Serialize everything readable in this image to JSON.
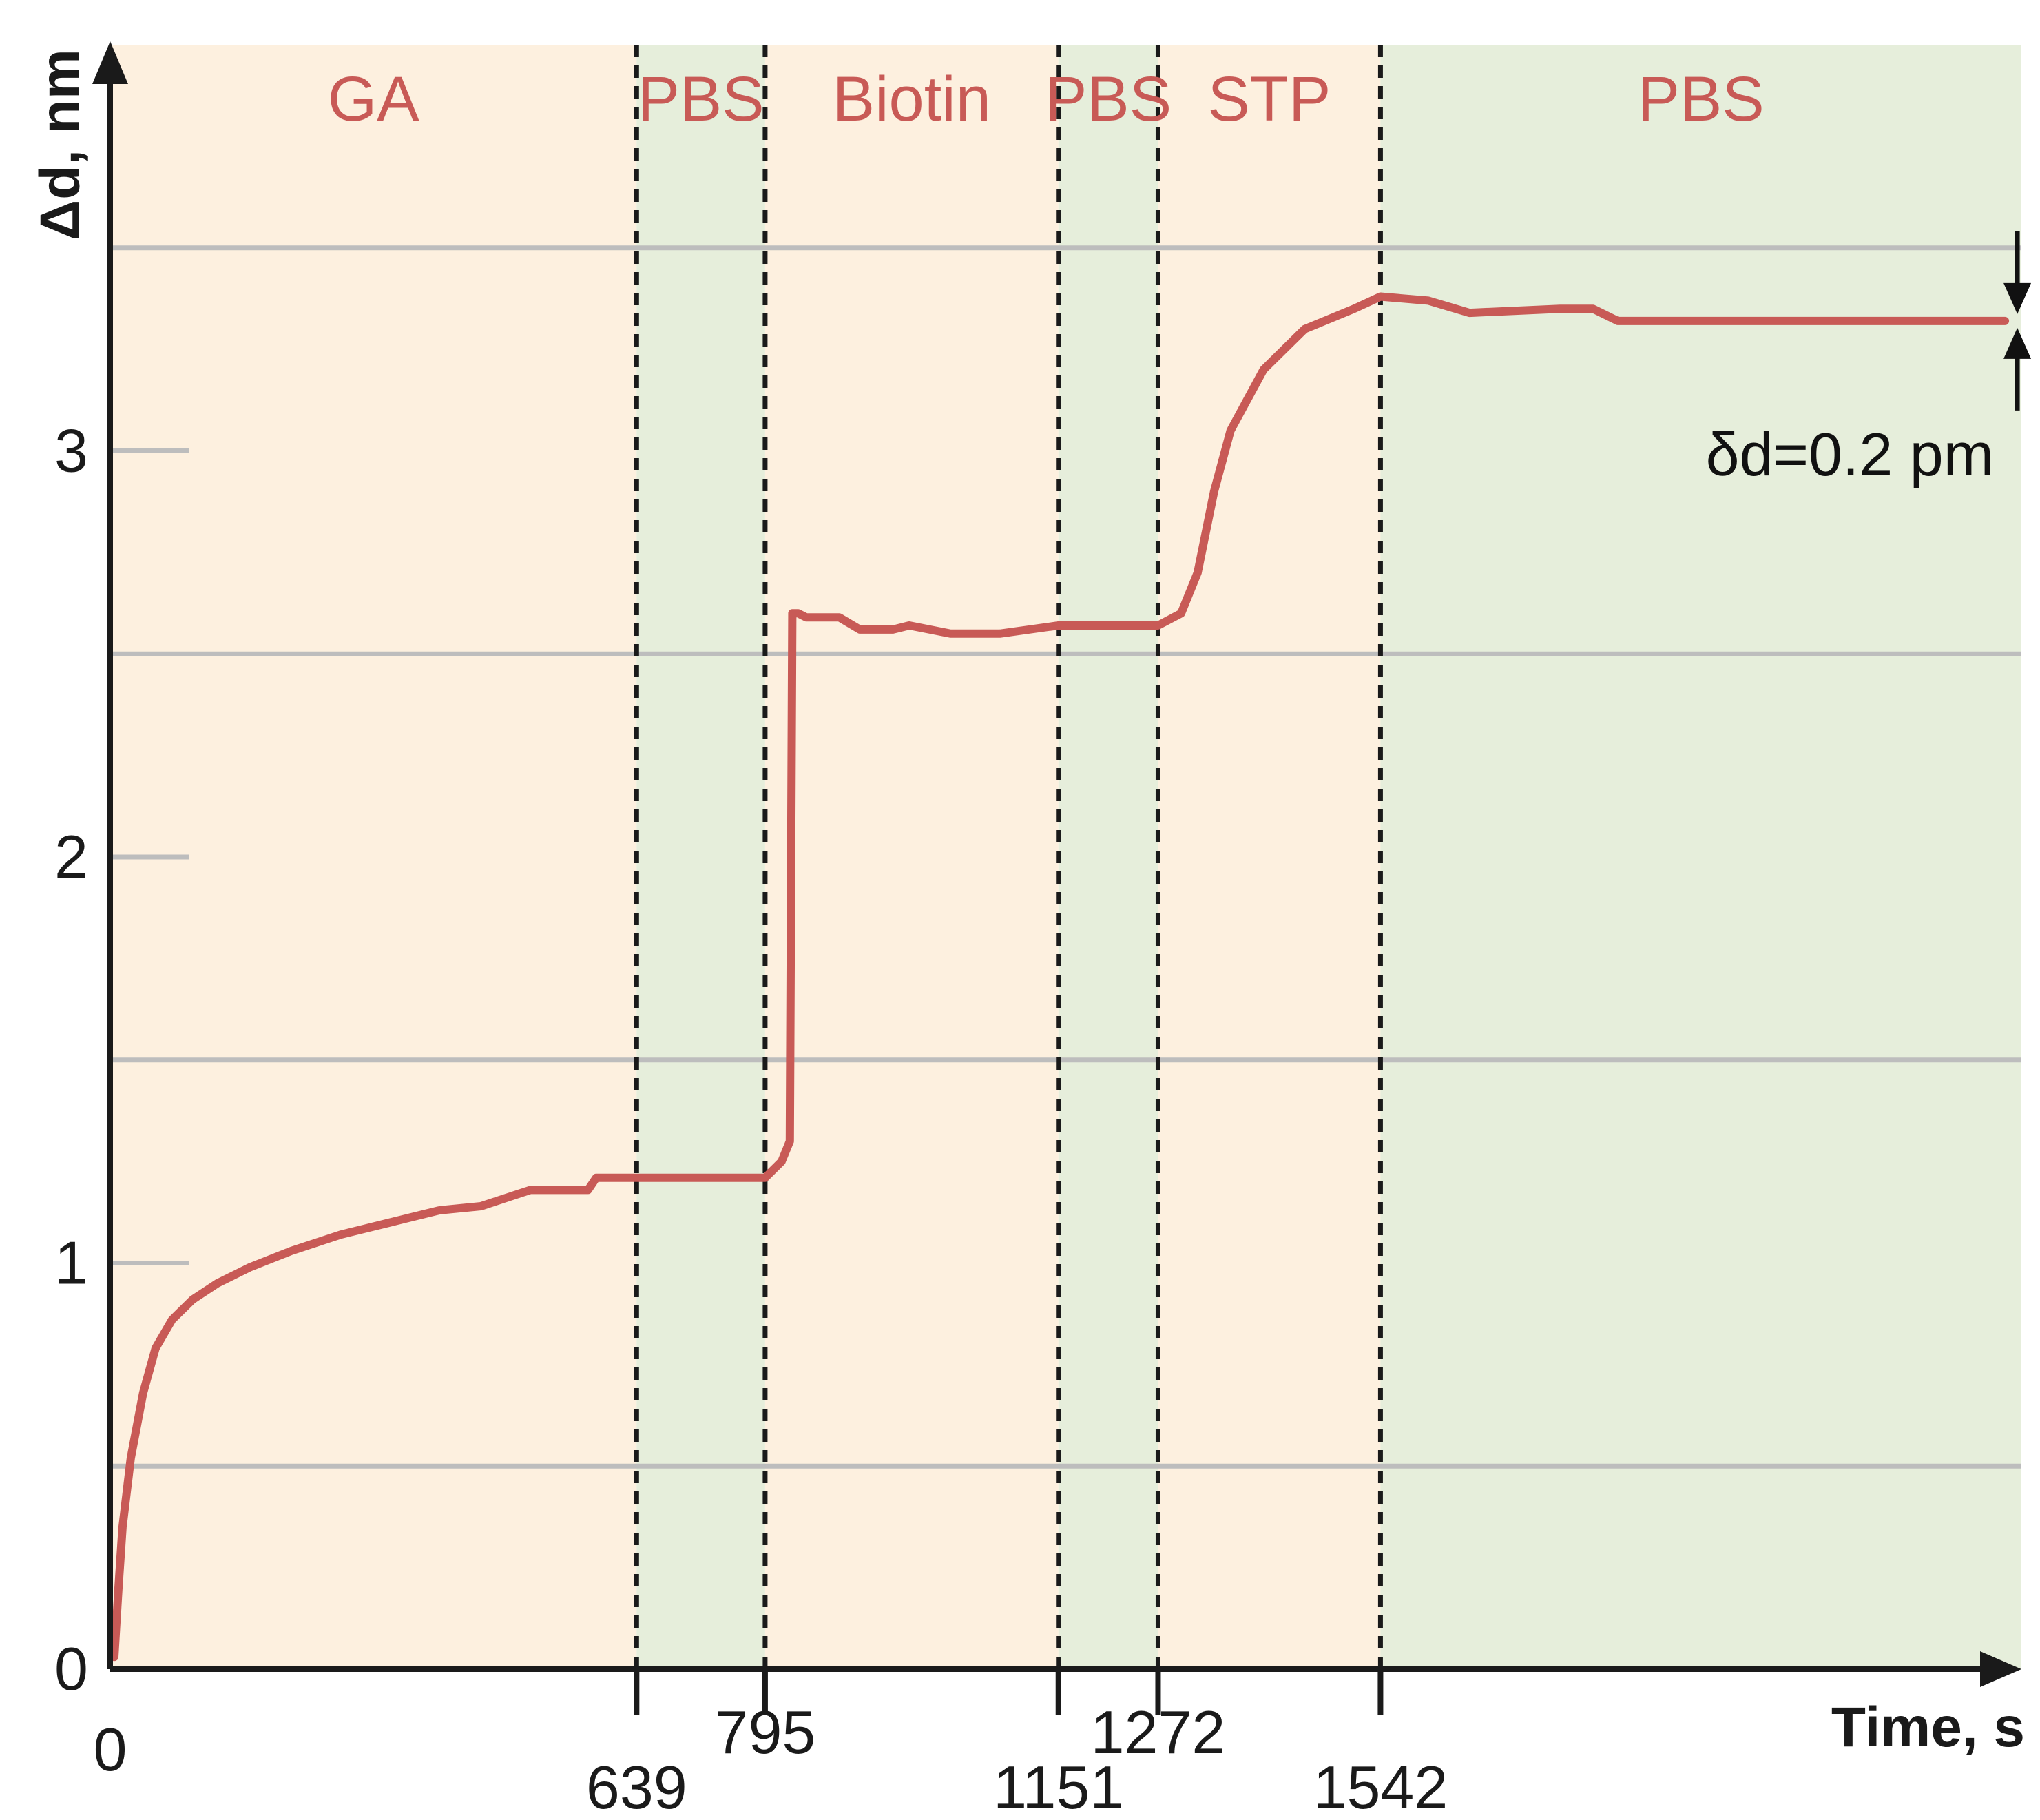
{
  "chart_data": {
    "type": "line",
    "xlabel": "Time, s",
    "ylabel": "Δd, nm",
    "xlim": [
      0,
      2320
    ],
    "ylim": [
      0,
      4
    ],
    "x_ticks": [
      0,
      639,
      795,
      1151,
      1272,
      1542
    ],
    "y_ticks": [
      0,
      1,
      2,
      3
    ],
    "y_gridlines": [
      0.5,
      1.5,
      2.5,
      3.5
    ],
    "grid": true,
    "phases": [
      {
        "label": "GA",
        "start": 0,
        "end": 639,
        "color": "#fdf0df"
      },
      {
        "label": "PBS",
        "start": 639,
        "end": 795,
        "color": "#e6eedb"
      },
      {
        "label": "Biotin",
        "start": 795,
        "end": 1151,
        "color": "#fdf0df"
      },
      {
        "label": "PBS",
        "start": 1151,
        "end": 1272,
        "color": "#e6eedb"
      },
      {
        "label": "STP",
        "start": 1272,
        "end": 1542,
        "color": "#fdf0df"
      },
      {
        "label": "PBS",
        "start": 1542,
        "end": 2320,
        "color": "#e6eedb"
      }
    ],
    "series": [
      {
        "color": "#c85a56",
        "points": [
          [
            5,
            0.03
          ],
          [
            10,
            0.2
          ],
          [
            15,
            0.35
          ],
          [
            25,
            0.52
          ],
          [
            40,
            0.68
          ],
          [
            55,
            0.79
          ],
          [
            75,
            0.86
          ],
          [
            100,
            0.91
          ],
          [
            130,
            0.95
          ],
          [
            170,
            0.99
          ],
          [
            220,
            1.03
          ],
          [
            280,
            1.07
          ],
          [
            340,
            1.1
          ],
          [
            400,
            1.13
          ],
          [
            450,
            1.14
          ],
          [
            510,
            1.18
          ],
          [
            580,
            1.18
          ],
          [
            590,
            1.21
          ],
          [
            639,
            1.21
          ],
          [
            700,
            1.21
          ],
          [
            795,
            1.21
          ],
          [
            815,
            1.25
          ],
          [
            825,
            1.3
          ],
          [
            828,
            2.6
          ],
          [
            835,
            2.6
          ],
          [
            845,
            2.59
          ],
          [
            885,
            2.59
          ],
          [
            910,
            2.56
          ],
          [
            950,
            2.56
          ],
          [
            970,
            2.57
          ],
          [
            1020,
            2.55
          ],
          [
            1080,
            2.55
          ],
          [
            1151,
            2.57
          ],
          [
            1200,
            2.57
          ],
          [
            1272,
            2.57
          ],
          [
            1300,
            2.6
          ],
          [
            1320,
            2.7
          ],
          [
            1340,
            2.9
          ],
          [
            1360,
            3.05
          ],
          [
            1400,
            3.2
          ],
          [
            1450,
            3.3
          ],
          [
            1510,
            3.35
          ],
          [
            1542,
            3.38
          ],
          [
            1600,
            3.37
          ],
          [
            1650,
            3.34
          ],
          [
            1760,
            3.35
          ],
          [
            1800,
            3.35
          ],
          [
            1830,
            3.32
          ],
          [
            2300,
            3.32
          ]
        ]
      }
    ],
    "annotation": {
      "text": "δd=0.2 pm",
      "x": 2300,
      "y": 3.32
    }
  },
  "colors": {
    "line": "#c85a56",
    "phase_text": "#c85a56",
    "axis": "#1a1a1a",
    "grid": "#bdbdbd",
    "divider": "#1a1a1a"
  }
}
